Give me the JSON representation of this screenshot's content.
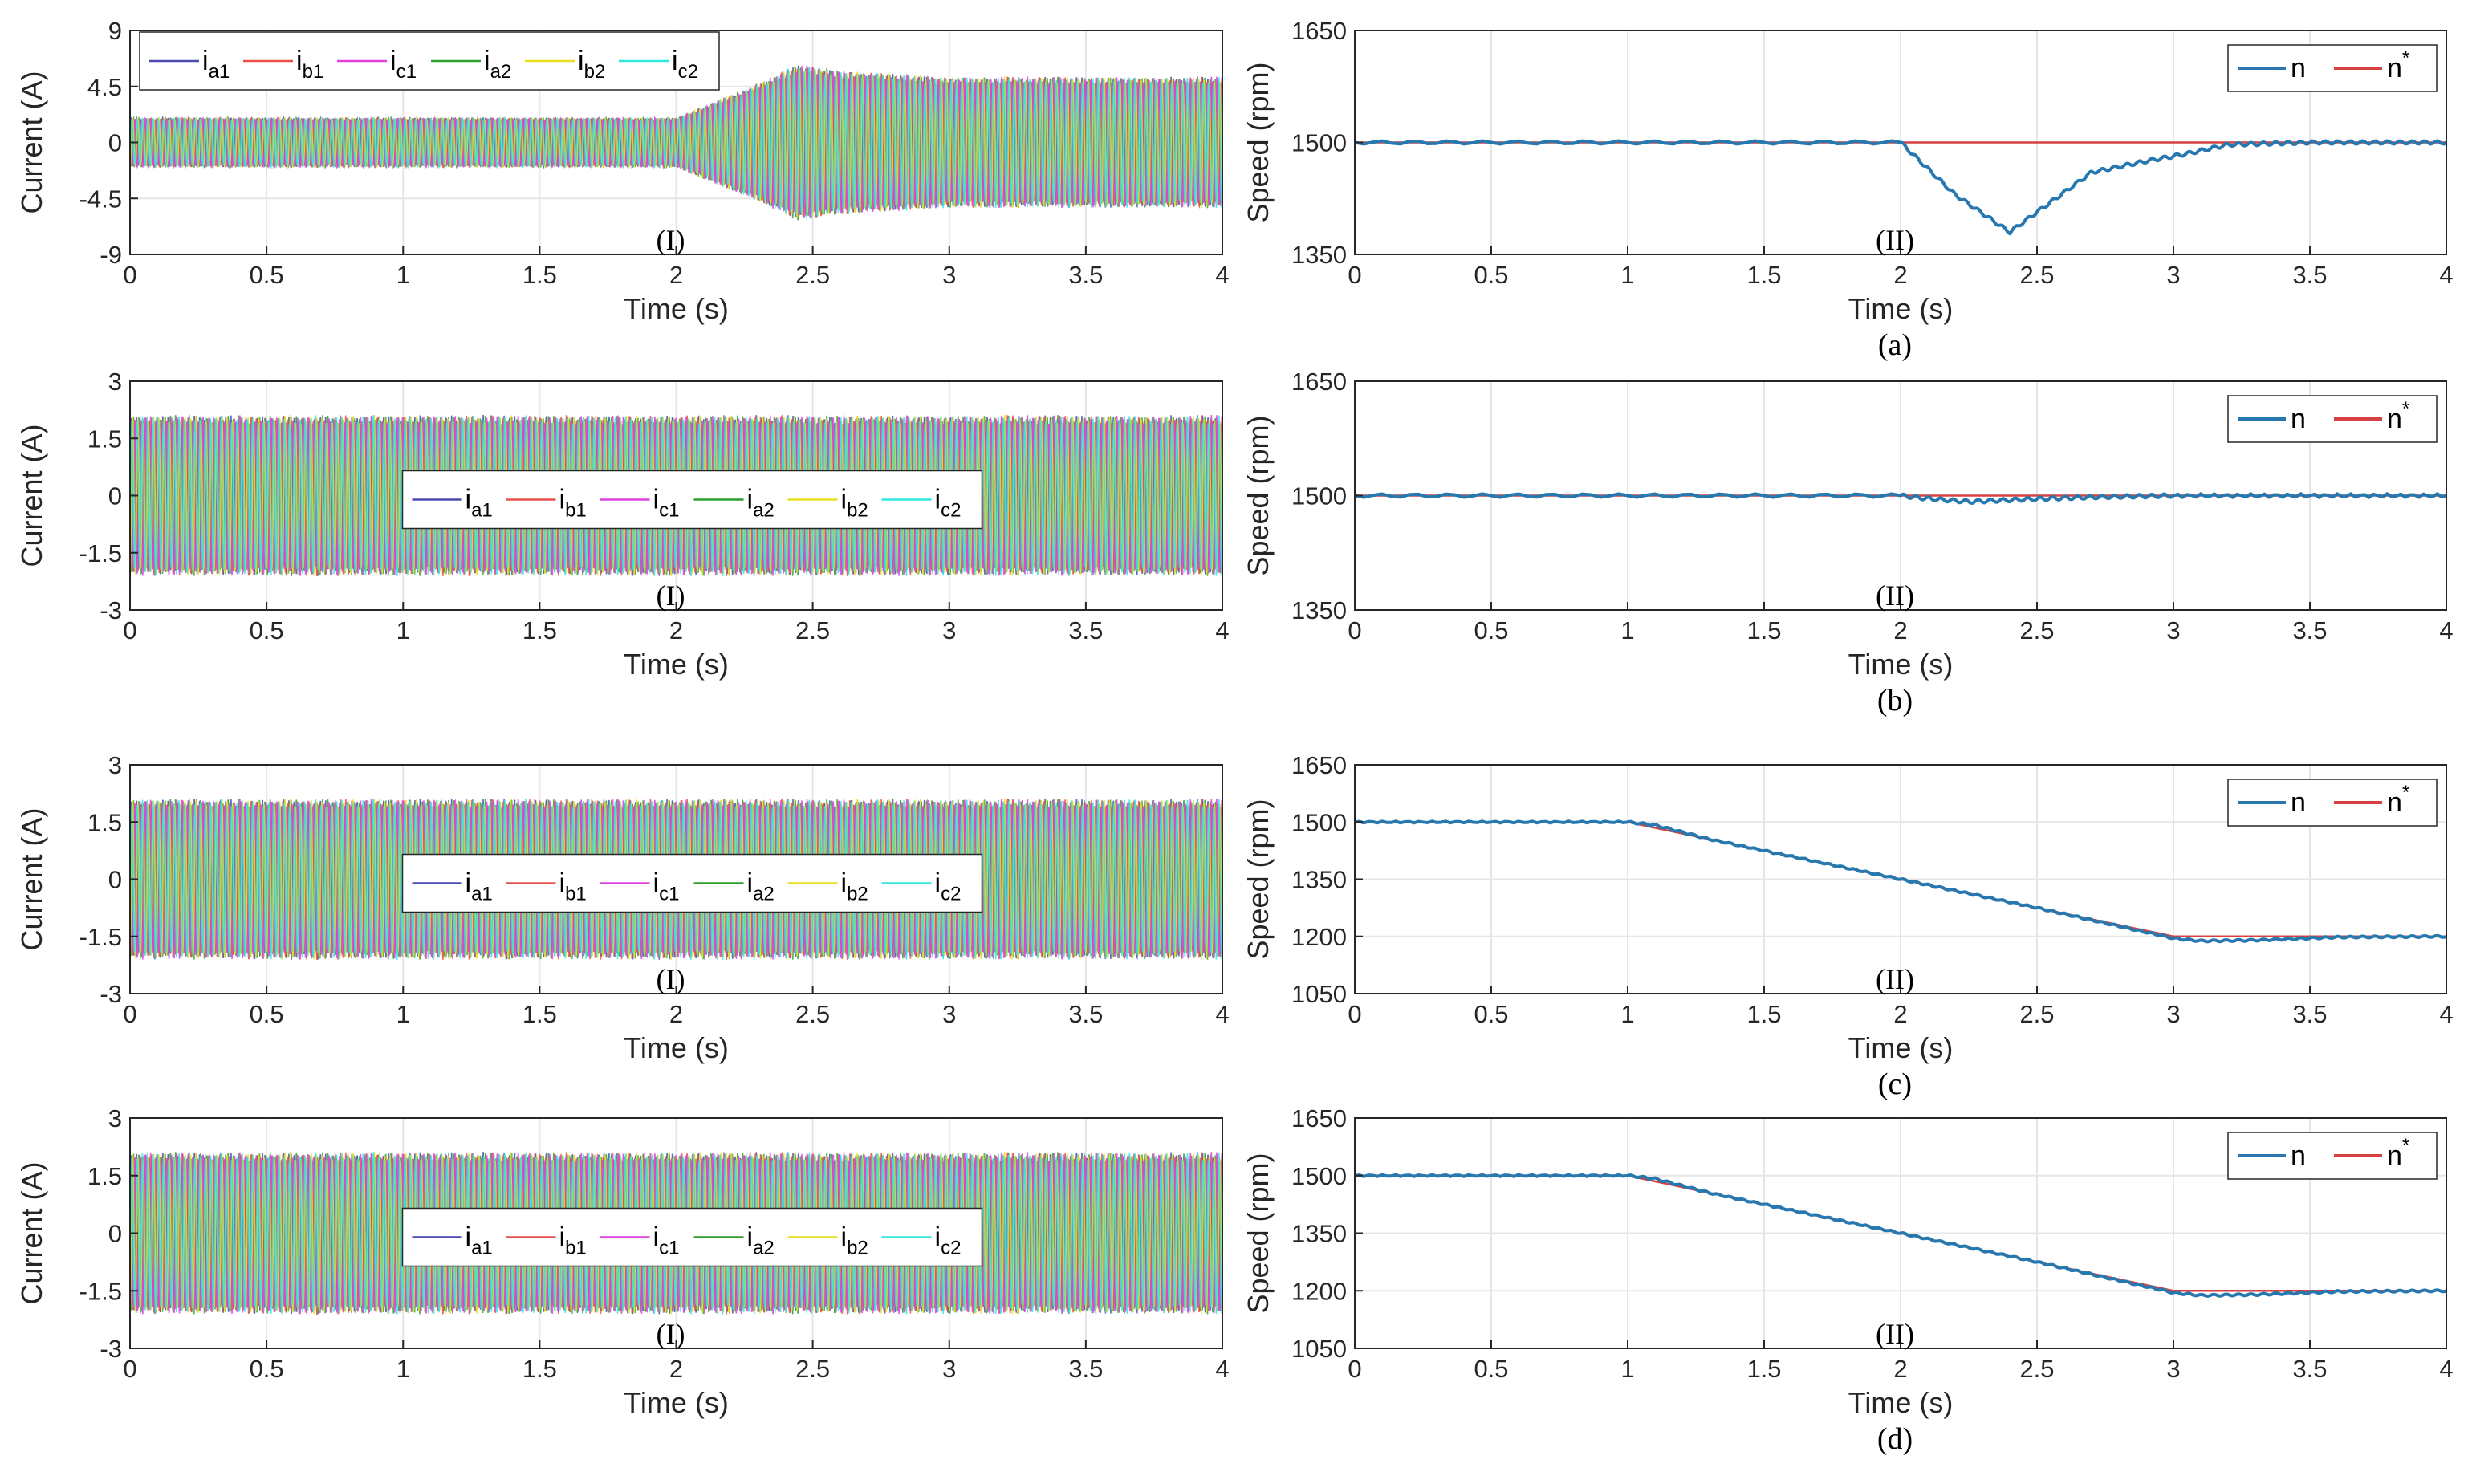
{
  "chart_data": [
    {
      "id": "a-current",
      "type": "line",
      "panel_tag": "(I)",
      "xlabel": "Time (s)",
      "ylabel": "Current (A)",
      "xlim": [
        0,
        4
      ],
      "ylim": [
        -9,
        9
      ],
      "xticks": [
        "0",
        "0.5",
        "1",
        "1.5",
        "2",
        "2.5",
        "3",
        "3.5",
        "4"
      ],
      "yticks": [
        "-9",
        "-4.5",
        "0",
        "4.5",
        "9"
      ],
      "ytick_values": [
        -9,
        -4.5,
        0,
        4.5,
        9
      ],
      "legend": [
        {
          "main": "i",
          "sub": "a1",
          "color": "#4a4ab0"
        },
        {
          "main": "i",
          "sub": "b1",
          "color": "#e8504a"
        },
        {
          "main": "i",
          "sub": "c1",
          "color": "#e040e0"
        },
        {
          "main": "i",
          "sub": "a2",
          "color": "#2ea02e"
        },
        {
          "main": "i",
          "sub": "b2",
          "color": "#e8e020"
        },
        {
          "main": "i",
          "sub": "c2",
          "color": "#30e8e0"
        }
      ],
      "legend_position": "top-left",
      "envelope": {
        "t": [
          0,
          2.0,
          2.3,
          2.45,
          2.6,
          3.0,
          4.0
        ],
        "amplitude": [
          1.9,
          1.9,
          4.5,
          6.0,
          5.5,
          5.0,
          5.0
        ]
      }
    },
    {
      "id": "a-speed",
      "type": "line",
      "panel_tag": "(II)",
      "xlabel": "Time (s)",
      "ylabel": "Speed (rpm)",
      "xlim": [
        0,
        4
      ],
      "ylim": [
        1350,
        1650
      ],
      "xticks": [
        "0",
        "0.5",
        "1",
        "1.5",
        "2",
        "2.5",
        "3",
        "3.5",
        "4"
      ],
      "yticks": [
        "1350",
        "1500",
        "1650"
      ],
      "ytick_values": [
        1350,
        1500,
        1650
      ],
      "legend": [
        {
          "main": "n",
          "sub": "",
          "sup": "",
          "color": "#2878b0"
        },
        {
          "main": "n",
          "sub": "",
          "sup": "*",
          "color": "#d64040"
        }
      ],
      "legend_position": "top-right",
      "series": [
        {
          "name": "n",
          "color": "#2878b0",
          "x": [
            0,
            2.0,
            2.2,
            2.4,
            2.55,
            2.7,
            2.9,
            3.05,
            3.2,
            3.5,
            4.0
          ],
          "y": [
            1500,
            1500,
            1430,
            1380,
            1420,
            1460,
            1475,
            1485,
            1497,
            1500,
            1500
          ]
        },
        {
          "name": "n*",
          "color": "#d64040",
          "x": [
            0,
            4
          ],
          "y": [
            1500,
            1500
          ]
        }
      ],
      "sublabel": "(a)"
    },
    {
      "id": "b-current",
      "type": "line",
      "panel_tag": "(I)",
      "xlabel": "Time (s)",
      "ylabel": "Current (A)",
      "xlim": [
        0,
        4
      ],
      "ylim": [
        -3,
        3
      ],
      "xticks": [
        "0",
        "0.5",
        "1",
        "1.5",
        "2",
        "2.5",
        "3",
        "3.5",
        "4"
      ],
      "yticks": [
        "-3",
        "-1.5",
        "0",
        "1.5",
        "3"
      ],
      "ytick_values": [
        -3,
        -1.5,
        0,
        1.5,
        3
      ],
      "legend": [
        {
          "main": "i",
          "sub": "a1",
          "color": "#4a4ab0"
        },
        {
          "main": "i",
          "sub": "b1",
          "color": "#e8504a"
        },
        {
          "main": "i",
          "sub": "c1",
          "color": "#e040e0"
        },
        {
          "main": "i",
          "sub": "a2",
          "color": "#2ea02e"
        },
        {
          "main": "i",
          "sub": "b2",
          "color": "#e8e020"
        },
        {
          "main": "i",
          "sub": "c2",
          "color": "#30e8e0"
        }
      ],
      "legend_position": "center",
      "envelope": {
        "t": [
          0,
          4
        ],
        "amplitude": [
          2.0,
          2.0
        ]
      }
    },
    {
      "id": "b-speed",
      "type": "line",
      "panel_tag": "(II)",
      "xlabel": "Time (s)",
      "ylabel": "Speed (rpm)",
      "xlim": [
        0,
        4
      ],
      "ylim": [
        1350,
        1650
      ],
      "xticks": [
        "0",
        "0.5",
        "1",
        "1.5",
        "2",
        "2.5",
        "3",
        "3.5",
        "4"
      ],
      "yticks": [
        "1350",
        "1500",
        "1650"
      ],
      "ytick_values": [
        1350,
        1500,
        1650
      ],
      "legend": [
        {
          "main": "n",
          "sub": "",
          "sup": "",
          "color": "#2878b0"
        },
        {
          "main": "n",
          "sub": "",
          "sup": "*",
          "color": "#d64040"
        }
      ],
      "legend_position": "top-right",
      "series": [
        {
          "name": "n",
          "color": "#2878b0",
          "x": [
            0,
            2.0,
            2.1,
            2.25,
            2.45,
            2.7,
            3.0,
            4.0
          ],
          "y": [
            1500,
            1500,
            1496,
            1492,
            1495,
            1498,
            1500,
            1500
          ]
        },
        {
          "name": "n*",
          "color": "#d64040",
          "x": [
            0,
            4
          ],
          "y": [
            1500,
            1500
          ]
        }
      ],
      "sublabel": "(b)"
    },
    {
      "id": "c-current",
      "type": "line",
      "panel_tag": "(I)",
      "xlabel": "Time (s)",
      "ylabel": "Current (A)",
      "xlim": [
        0,
        4
      ],
      "ylim": [
        -3,
        3
      ],
      "xticks": [
        "0",
        "0.5",
        "1",
        "1.5",
        "2",
        "2.5",
        "3",
        "3.5",
        "4"
      ],
      "yticks": [
        "-3",
        "-1.5",
        "0",
        "1.5",
        "3"
      ],
      "ytick_values": [
        -3,
        -1.5,
        0,
        1.5,
        3
      ],
      "legend": [
        {
          "main": "i",
          "sub": "a1",
          "color": "#4a4ab0"
        },
        {
          "main": "i",
          "sub": "b1",
          "color": "#e8504a"
        },
        {
          "main": "i",
          "sub": "c1",
          "color": "#e040e0"
        },
        {
          "main": "i",
          "sub": "a2",
          "color": "#2ea02e"
        },
        {
          "main": "i",
          "sub": "b2",
          "color": "#e8e020"
        },
        {
          "main": "i",
          "sub": "c2",
          "color": "#30e8e0"
        }
      ],
      "legend_position": "center",
      "envelope": {
        "t": [
          0,
          4
        ],
        "amplitude": [
          2.0,
          2.0
        ]
      }
    },
    {
      "id": "c-speed",
      "type": "line",
      "panel_tag": "(II)",
      "xlabel": "Time (s)",
      "ylabel": "Speed (rpm)",
      "xlim": [
        0,
        4
      ],
      "ylim": [
        1050,
        1650
      ],
      "xticks": [
        "0",
        "0.5",
        "1",
        "1.5",
        "2",
        "2.5",
        "3",
        "3.5",
        "4"
      ],
      "yticks": [
        "1050",
        "1200",
        "1350",
        "1500",
        "1650"
      ],
      "ytick_values": [
        1050,
        1200,
        1350,
        1500,
        1650
      ],
      "legend": [
        {
          "main": "n",
          "sub": "",
          "sup": "",
          "color": "#2878b0"
        },
        {
          "main": "n",
          "sub": "",
          "sup": "*",
          "color": "#d64040"
        }
      ],
      "legend_position": "top-right",
      "series": [
        {
          "name": "n",
          "color": "#2878b0",
          "x": [
            0,
            1.0,
            1.1,
            1.3,
            2.0,
            2.5,
            3.0,
            3.1,
            3.3,
            3.6,
            4.0
          ],
          "y": [
            1500,
            1500,
            1492,
            1455,
            1350,
            1275,
            1195,
            1188,
            1190,
            1198,
            1200
          ]
        },
        {
          "name": "n*",
          "color": "#d64040",
          "x": [
            0,
            1.0,
            3.0,
            4.0
          ],
          "y": [
            1500,
            1500,
            1200,
            1200
          ]
        }
      ],
      "sublabel": "(c)"
    },
    {
      "id": "d-current",
      "type": "line",
      "panel_tag": "(I)",
      "xlabel": "Time (s)",
      "ylabel": "Current (A)",
      "xlim": [
        0,
        4
      ],
      "ylim": [
        -3,
        3
      ],
      "xticks": [
        "0",
        "0.5",
        "1",
        "1.5",
        "2",
        "2.5",
        "3",
        "3.5",
        "4"
      ],
      "yticks": [
        "-3",
        "-1.5",
        "0",
        "1.5",
        "3"
      ],
      "ytick_values": [
        -3,
        -1.5,
        0,
        1.5,
        3
      ],
      "legend": [
        {
          "main": "i",
          "sub": "a1",
          "color": "#4a4ab0"
        },
        {
          "main": "i",
          "sub": "b1",
          "color": "#e8504a"
        },
        {
          "main": "i",
          "sub": "c1",
          "color": "#e040e0"
        },
        {
          "main": "i",
          "sub": "a2",
          "color": "#2ea02e"
        },
        {
          "main": "i",
          "sub": "b2",
          "color": "#e8e020"
        },
        {
          "main": "i",
          "sub": "c2",
          "color": "#30e8e0"
        }
      ],
      "legend_position": "center",
      "envelope": {
        "t": [
          0,
          4
        ],
        "amplitude": [
          2.0,
          2.0
        ]
      }
    },
    {
      "id": "d-speed",
      "type": "line",
      "panel_tag": "(II)",
      "xlabel": "Time (s)",
      "ylabel": "Speed (rpm)",
      "xlim": [
        0,
        4
      ],
      "ylim": [
        1050,
        1650
      ],
      "xticks": [
        "0",
        "0.5",
        "1",
        "1.5",
        "2",
        "2.5",
        "3",
        "3.5",
        "4"
      ],
      "yticks": [
        "1050",
        "1200",
        "1350",
        "1500",
        "1650"
      ],
      "ytick_values": [
        1050,
        1200,
        1350,
        1500,
        1650
      ],
      "legend": [
        {
          "main": "n",
          "sub": "",
          "sup": "",
          "color": "#2878b0"
        },
        {
          "main": "n",
          "sub": "",
          "sup": "*",
          "color": "#d64040"
        }
      ],
      "legend_position": "top-right",
      "series": [
        {
          "name": "n",
          "color": "#2878b0",
          "x": [
            0,
            1.0,
            1.1,
            1.3,
            2.0,
            2.5,
            3.0,
            3.1,
            3.3,
            3.6,
            4.0
          ],
          "y": [
            1500,
            1500,
            1492,
            1455,
            1350,
            1275,
            1195,
            1188,
            1190,
            1198,
            1200
          ]
        },
        {
          "name": "n*",
          "color": "#d64040",
          "x": [
            0,
            1.0,
            3.0,
            4.0
          ],
          "y": [
            1500,
            1500,
            1200,
            1200
          ]
        }
      ],
      "sublabel": "(d)"
    }
  ]
}
